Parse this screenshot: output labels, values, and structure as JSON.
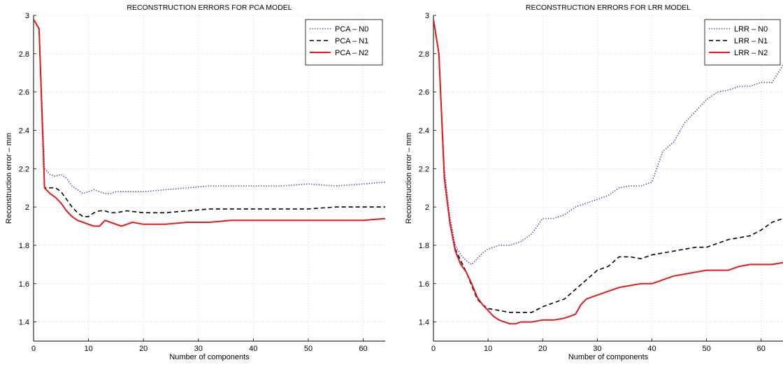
{
  "chart_data": [
    {
      "type": "line",
      "title": "RECONSTRUCTION ERRORS FOR PCA MODEL",
      "xlabel": "Number of components",
      "ylabel": "Reconstruction error – mm",
      "xlim": [
        0,
        64
      ],
      "ylim": [
        1.3,
        3.0
      ],
      "xticks": [
        0,
        10,
        20,
        30,
        40,
        50,
        60
      ],
      "yticks": [
        1.4,
        1.6,
        1.8,
        2,
        2.2,
        2.4,
        2.6,
        2.8,
        3
      ],
      "grid": true,
      "legend_position": "top-right",
      "series": [
        {
          "name": "PCA – N0",
          "style": "dotted",
          "color": "#3333aa",
          "x": [
            0,
            1,
            2,
            3,
            4,
            5,
            6,
            7,
            8,
            9,
            10,
            11,
            12,
            13,
            14,
            15,
            17,
            20,
            24,
            28,
            32,
            36,
            40,
            45,
            50,
            55,
            60,
            64
          ],
          "y": [
            2.98,
            2.93,
            2.2,
            2.17,
            2.16,
            2.17,
            2.15,
            2.11,
            2.09,
            2.07,
            2.08,
            2.09,
            2.08,
            2.07,
            2.07,
            2.08,
            2.08,
            2.08,
            2.09,
            2.1,
            2.11,
            2.11,
            2.11,
            2.11,
            2.12,
            2.11,
            2.12,
            2.13
          ]
        },
        {
          "name": "PCA – N1",
          "style": "dashed",
          "color": "#000000",
          "x": [
            0,
            1,
            2,
            3,
            4,
            5,
            6,
            7,
            8,
            9,
            10,
            11,
            12,
            13,
            14,
            15,
            17,
            20,
            24,
            28,
            32,
            36,
            40,
            45,
            50,
            55,
            60,
            64
          ],
          "y": [
            2.98,
            2.93,
            2.1,
            2.1,
            2.1,
            2.08,
            2.04,
            2.0,
            1.97,
            1.95,
            1.95,
            1.97,
            1.98,
            1.98,
            1.97,
            1.97,
            1.98,
            1.97,
            1.97,
            1.98,
            1.99,
            1.99,
            1.99,
            1.99,
            1.99,
            2.0,
            2.0,
            2.0
          ]
        },
        {
          "name": "PCA – N2",
          "style": "solid",
          "color": "#e41a1c",
          "x": [
            0,
            1,
            2,
            3,
            4,
            5,
            6,
            7,
            8,
            9,
            10,
            11,
            12,
            13,
            14,
            15,
            16,
            17,
            18,
            20,
            24,
            28,
            32,
            36,
            40,
            45,
            50,
            55,
            60,
            64
          ],
          "y": [
            2.98,
            2.93,
            2.1,
            2.07,
            2.05,
            2.02,
            1.98,
            1.95,
            1.93,
            1.92,
            1.91,
            1.9,
            1.9,
            1.93,
            1.92,
            1.91,
            1.9,
            1.91,
            1.92,
            1.91,
            1.91,
            1.92,
            1.92,
            1.93,
            1.93,
            1.93,
            1.93,
            1.93,
            1.93,
            1.94
          ]
        }
      ]
    },
    {
      "type": "line",
      "title": "RECONSTRUCTION ERRORS FOR LRR MODEL",
      "xlabel": "Number of components",
      "ylabel": "Reconstruction error – mm",
      "xlim": [
        0,
        64
      ],
      "ylim": [
        1.3,
        3.0
      ],
      "xticks": [
        0,
        10,
        20,
        30,
        40,
        50,
        60
      ],
      "yticks": [
        1.4,
        1.6,
        1.8,
        2,
        2.2,
        2.4,
        2.6,
        2.8,
        3
      ],
      "grid": true,
      "legend_position": "top-right",
      "series": [
        {
          "name": "LRR – N0",
          "style": "dotted",
          "color": "#3333aa",
          "x": [
            0,
            1,
            2,
            3,
            4,
            5,
            6,
            7,
            8,
            9,
            10,
            12,
            14,
            16,
            18,
            20,
            22,
            24,
            26,
            28,
            30,
            32,
            34,
            36,
            38,
            40,
            42,
            44,
            46,
            48,
            50,
            52,
            54,
            56,
            58,
            60,
            62,
            64
          ],
          "y": [
            2.98,
            2.8,
            2.2,
            1.95,
            1.8,
            1.75,
            1.72,
            1.7,
            1.73,
            1.76,
            1.78,
            1.8,
            1.8,
            1.82,
            1.86,
            1.94,
            1.94,
            1.96,
            2.0,
            2.02,
            2.04,
            2.06,
            2.1,
            2.11,
            2.11,
            2.13,
            2.29,
            2.34,
            2.44,
            2.5,
            2.56,
            2.6,
            2.61,
            2.63,
            2.63,
            2.65,
            2.65,
            2.74
          ]
        },
        {
          "name": "LRR – N1",
          "style": "dashed",
          "color": "#000000",
          "x": [
            0,
            1,
            2,
            3,
            4,
            5,
            6,
            7,
            8,
            9,
            10,
            12,
            14,
            16,
            18,
            20,
            22,
            24,
            26,
            28,
            30,
            32,
            34,
            36,
            38,
            40,
            42,
            44,
            46,
            48,
            50,
            52,
            54,
            56,
            58,
            60,
            62,
            64
          ],
          "y": [
            2.98,
            2.8,
            2.15,
            1.92,
            1.78,
            1.72,
            1.66,
            1.59,
            1.52,
            1.49,
            1.47,
            1.46,
            1.45,
            1.45,
            1.45,
            1.48,
            1.5,
            1.52,
            1.57,
            1.62,
            1.67,
            1.69,
            1.74,
            1.74,
            1.73,
            1.75,
            1.76,
            1.77,
            1.78,
            1.79,
            1.79,
            1.81,
            1.83,
            1.84,
            1.85,
            1.88,
            1.92,
            1.94
          ]
        },
        {
          "name": "LRR – N2",
          "style": "solid",
          "color": "#e41a1c",
          "x": [
            0,
            1,
            2,
            3,
            4,
            5,
            6,
            7,
            8,
            9,
            10,
            11,
            12,
            13,
            14,
            15,
            16,
            18,
            20,
            22,
            24,
            25,
            26,
            27,
            28,
            30,
            32,
            34,
            36,
            38,
            40,
            42,
            44,
            46,
            48,
            50,
            52,
            54,
            56,
            58,
            60,
            62,
            64
          ],
          "y": [
            2.98,
            2.8,
            2.15,
            1.92,
            1.77,
            1.7,
            1.66,
            1.6,
            1.53,
            1.49,
            1.46,
            1.43,
            1.41,
            1.4,
            1.39,
            1.39,
            1.4,
            1.4,
            1.41,
            1.41,
            1.42,
            1.43,
            1.44,
            1.49,
            1.52,
            1.54,
            1.56,
            1.58,
            1.59,
            1.6,
            1.6,
            1.62,
            1.64,
            1.65,
            1.66,
            1.67,
            1.67,
            1.67,
            1.69,
            1.7,
            1.7,
            1.7,
            1.71
          ]
        }
      ]
    }
  ]
}
